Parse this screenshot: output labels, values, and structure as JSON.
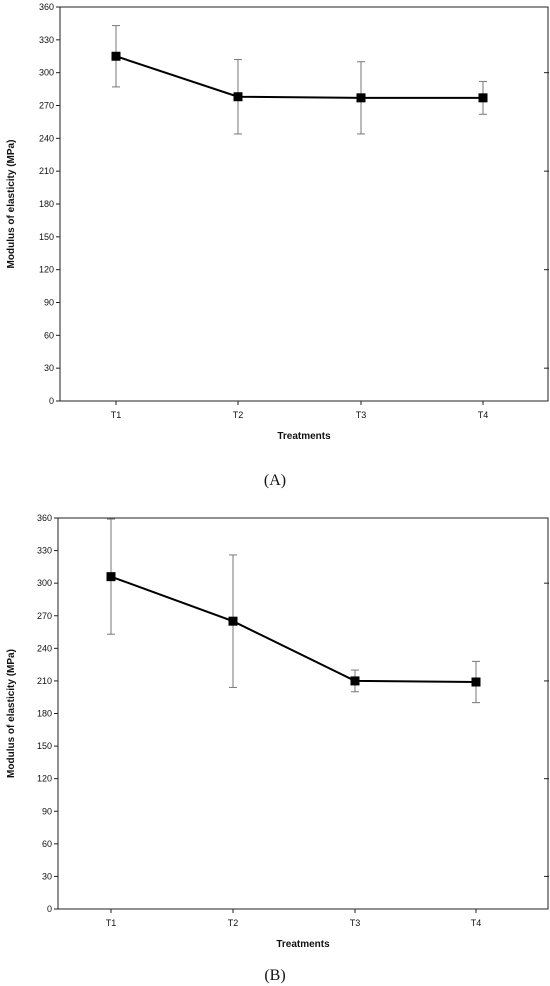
{
  "chart_data": [
    {
      "type": "line",
      "panel_label": "(A)",
      "xlabel": "Treatments",
      "ylabel": "Modulus of elasticity (MPa)",
      "categories": [
        "T1",
        "T2",
        "T3",
        "T4"
      ],
      "values": [
        315,
        278,
        277,
        277
      ],
      "errors": [
        28,
        34,
        33,
        15
      ],
      "ylim": [
        0,
        360
      ],
      "yticks": [
        0,
        30,
        60,
        90,
        120,
        150,
        180,
        210,
        240,
        270,
        300,
        330,
        360
      ],
      "marker": "square",
      "grid": false
    },
    {
      "type": "line",
      "panel_label": "(B)",
      "xlabel": "Treatments",
      "ylabel": "Modulus of elasticity (MPa)",
      "categories": [
        "T1",
        "T2",
        "T3",
        "T4"
      ],
      "values": [
        306,
        265,
        210,
        209
      ],
      "errors": [
        53,
        61,
        10,
        19
      ],
      "ylim": [
        0,
        360
      ],
      "yticks": [
        0,
        30,
        60,
        90,
        120,
        150,
        180,
        210,
        240,
        270,
        300,
        330,
        360
      ],
      "marker": "square",
      "grid": false
    }
  ]
}
